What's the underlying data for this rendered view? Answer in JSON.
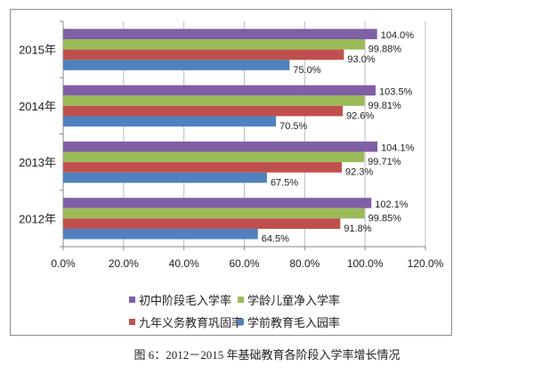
{
  "chart_data": {
    "type": "bar",
    "orientation": "horizontal",
    "categories": [
      "2012年",
      "2013年",
      "2014年",
      "2015年"
    ],
    "series": [
      {
        "name": "初中阶段毛入学率",
        "color": "#7f5fa5",
        "values": [
          102.1,
          104.1,
          103.5,
          104.0
        ],
        "labels": [
          "102.1%",
          "104.1%",
          "103.5%",
          "104.0%"
        ]
      },
      {
        "name": "学龄儿童净入学率",
        "color": "#9bbb59",
        "values": [
          99.85,
          99.71,
          99.81,
          99.88
        ],
        "labels": [
          "99.85%",
          "99.71%",
          "99.81%",
          "99.88%"
        ]
      },
      {
        "name": "九年义务教育巩固率",
        "color": "#c0504d",
        "values": [
          91.8,
          92.3,
          92.6,
          93.0
        ],
        "labels": [
          "91.8%",
          "92.3%",
          "92.6%",
          "93.0%"
        ]
      },
      {
        "name": "学前教育毛入园率",
        "color": "#4f81bd",
        "values": [
          64.5,
          67.5,
          70.5,
          75.0
        ],
        "labels": [
          "64.5%",
          "67.5%",
          "70.5%",
          "75.0%"
        ]
      }
    ],
    "xlim": [
      0,
      120
    ],
    "x_ticks": [
      "0.0%",
      "20.0%",
      "40.0%",
      "60.0%",
      "80.0%",
      "100.0%",
      "120.0%"
    ],
    "grid": "vertical",
    "legend_position": "bottom",
    "title": "",
    "xlabel": "",
    "ylabel": ""
  },
  "caption": "图 6：2012－2015 年基础教育各阶段入学率增长情况"
}
